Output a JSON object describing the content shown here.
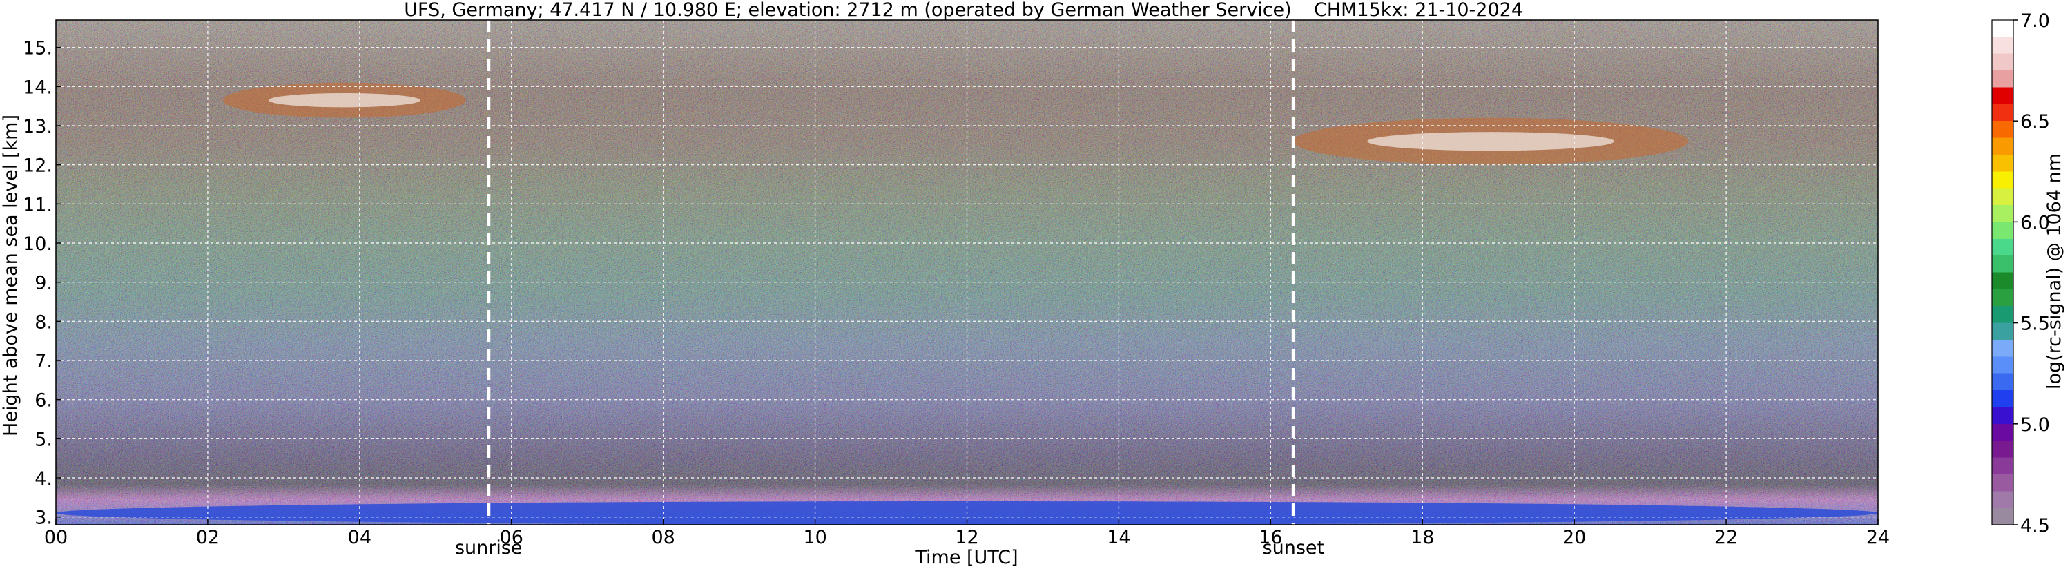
{
  "colors": {
    "background_top": "#3a2a26",
    "low_layer_blue": "#2b4cd8",
    "aerosol_magenta": "#b04cc0",
    "cloud_white": "#ffffff",
    "grid": "#ffffff",
    "marker_line": "#ffffff"
  },
  "chart_data": {
    "type": "heatmap",
    "title": "UFS, Germany; 47.417 N / 10.980 E; elevation: 2712 m  (operated by German Weather Service)",
    "instrument_date": "CHM15kx: 21-10-2024",
    "xlabel": "Time [UTC]",
    "ylabel": "Height above mean sea level [km]",
    "xlim": [
      0,
      24
    ],
    "ylim": [
      2.8,
      15.7
    ],
    "x_ticks": [
      0,
      2,
      4,
      6,
      8,
      10,
      12,
      14,
      16,
      18,
      20,
      22,
      24
    ],
    "x_tick_labels": [
      "00",
      "02",
      "04",
      "06",
      "08",
      "10",
      "12",
      "14",
      "16",
      "18",
      "20",
      "22",
      "24"
    ],
    "y_ticks": [
      3,
      4,
      5,
      6,
      7,
      8,
      9,
      10,
      11,
      12,
      13,
      14,
      15
    ],
    "y_tick_labels": [
      "3.",
      "4.",
      "5.",
      "6.",
      "7.",
      "8.",
      "9.",
      "10.",
      "11.",
      "12.",
      "13.",
      "14.",
      "15."
    ],
    "grid": true,
    "markers": [
      {
        "label": "sunrise",
        "x": 5.7
      },
      {
        "label": "sunset",
        "x": 16.3
      }
    ],
    "colorbar": {
      "label": "log(rc-signal) @ 1064 nm",
      "range": [
        4.5,
        7.0
      ],
      "ticks": [
        4.5,
        5.0,
        5.5,
        6.0,
        6.5,
        7.0
      ],
      "tick_labels": [
        "4.5",
        "5.0",
        "5.5",
        "6.0",
        "6.5",
        "7.0"
      ],
      "colors": [
        "#9a8aa0",
        "#a07aa8",
        "#9a5aa0",
        "#8a3a98",
        "#7a1a90",
        "#6a0aa0",
        "#3a10d0",
        "#2040f0",
        "#3a6af0",
        "#5a8ef8",
        "#7aaaf8",
        "#3aa0a0",
        "#1a9a70",
        "#2aa040",
        "#1a8a2a",
        "#3ac06a",
        "#4ad88a",
        "#7ae870",
        "#a8f060",
        "#d8f040",
        "#f8f000",
        "#f8c000",
        "#f89a00",
        "#f86a00",
        "#f03010",
        "#e00000",
        "#e8a0a0",
        "#f0c8c8",
        "#f8e0e0",
        "#ffffff"
      ]
    },
    "features": [
      {
        "name": "boundary layer",
        "x_range": [
          0,
          24
        ],
        "height_km": [
          2.8,
          3.4
        ]
      },
      {
        "name": "cirrus cloud morning",
        "x_range": [
          2.2,
          5.4
        ],
        "height_km": [
          13.2,
          14.1
        ]
      },
      {
        "name": "cirrus cloud evening",
        "x_range": [
          16.3,
          21.5
        ],
        "height_km": [
          12.0,
          13.2
        ]
      }
    ]
  }
}
